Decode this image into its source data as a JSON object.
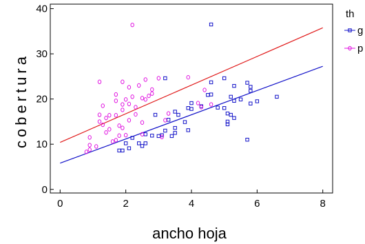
{
  "chart_data": {
    "type": "scatter",
    "title": "",
    "xlabel": "ancho hoja",
    "ylabel": "cobertura",
    "xlim": [
      -0.3,
      8.3
    ],
    "ylim": [
      -0.8,
      41
    ],
    "xticks": [
      0,
      2,
      4,
      6,
      8
    ],
    "yticks": [
      0,
      10,
      20,
      30,
      40
    ],
    "grid": false,
    "legend": {
      "title": "th",
      "placement": "right"
    },
    "series": [
      {
        "name": "g",
        "marker": "square",
        "color": "#1010c8",
        "fit_line": {
          "intercept": 5.8,
          "slope": 2.68
        },
        "points": [
          [
            1.8,
            8.6
          ],
          [
            1.9,
            8.6
          ],
          [
            2.1,
            9.1
          ],
          [
            2.0,
            10.2
          ],
          [
            2.2,
            11.4
          ],
          [
            2.4,
            10.2
          ],
          [
            2.5,
            9.6
          ],
          [
            2.6,
            10.2
          ],
          [
            2.6,
            12.2
          ],
          [
            2.8,
            11.9
          ],
          [
            2.9,
            16.5
          ],
          [
            3.0,
            11.8
          ],
          [
            3.1,
            12.0
          ],
          [
            3.2,
            13.0
          ],
          [
            3.2,
            24.6
          ],
          [
            3.3,
            15.4
          ],
          [
            3.4,
            11.8
          ],
          [
            3.5,
            12.5
          ],
          [
            3.5,
            13.6
          ],
          [
            3.5,
            17.2
          ],
          [
            3.6,
            16.5
          ],
          [
            3.8,
            14.9
          ],
          [
            3.9,
            18.0
          ],
          [
            3.9,
            13.1
          ],
          [
            4.0,
            19.1
          ],
          [
            4.0,
            17.8
          ],
          [
            4.3,
            18.4
          ],
          [
            4.5,
            20.9
          ],
          [
            4.6,
            21.0
          ],
          [
            4.6,
            36.5
          ],
          [
            4.6,
            23.7
          ],
          [
            4.8,
            18.1
          ],
          [
            5.0,
            24.6
          ],
          [
            5.0,
            18.0
          ],
          [
            5.1,
            16.8
          ],
          [
            5.1,
            15.0
          ],
          [
            5.1,
            14.4
          ],
          [
            5.2,
            16.5
          ],
          [
            5.2,
            20.5
          ],
          [
            5.3,
            22.9
          ],
          [
            5.3,
            15.8
          ],
          [
            5.3,
            19.6
          ],
          [
            5.5,
            19.9
          ],
          [
            5.7,
            23.6
          ],
          [
            5.7,
            11.0
          ],
          [
            5.8,
            22.7
          ],
          [
            5.8,
            21.8
          ],
          [
            5.8,
            19.0
          ],
          [
            6.0,
            19.5
          ],
          [
            6.6,
            20.5
          ]
        ]
      },
      {
        "name": "p",
        "marker": "circle",
        "color": "#e010e0",
        "fit_line": {
          "intercept": 10.4,
          "slope": 3.17
        },
        "points": [
          [
            0.8,
            8.3
          ],
          [
            0.9,
            8.8
          ],
          [
            0.9,
            9.8
          ],
          [
            0.9,
            11.5
          ],
          [
            1.1,
            9.5
          ],
          [
            1.2,
            16.5
          ],
          [
            1.2,
            15.0
          ],
          [
            1.2,
            23.8
          ],
          [
            1.3,
            18.5
          ],
          [
            1.3,
            14.3
          ],
          [
            1.4,
            15.8
          ],
          [
            1.4,
            12.6
          ],
          [
            1.5,
            16.4
          ],
          [
            1.5,
            13.3
          ],
          [
            1.6,
            10.6
          ],
          [
            1.7,
            10.9
          ],
          [
            1.7,
            16.4
          ],
          [
            1.7,
            19.6
          ],
          [
            1.7,
            21.0
          ],
          [
            1.8,
            14.1
          ],
          [
            1.8,
            11.9
          ],
          [
            1.9,
            23.8
          ],
          [
            1.9,
            17.6
          ],
          [
            1.9,
            13.6
          ],
          [
            1.9,
            18.8
          ],
          [
            2.0,
            12.0
          ],
          [
            2.0,
            19.9
          ],
          [
            2.1,
            18.9
          ],
          [
            2.1,
            22.6
          ],
          [
            2.1,
            15.3
          ],
          [
            2.2,
            20.5
          ],
          [
            2.2,
            36.4
          ],
          [
            2.3,
            18.2
          ],
          [
            2.3,
            16.6
          ],
          [
            2.4,
            23.0
          ],
          [
            2.5,
            20.2
          ],
          [
            2.5,
            14.8
          ],
          [
            2.5,
            12.2
          ],
          [
            2.6,
            24.3
          ],
          [
            2.6,
            19.9
          ],
          [
            2.7,
            20.7
          ],
          [
            2.8,
            22.1
          ],
          [
            2.8,
            21.2
          ],
          [
            3.0,
            24.6
          ],
          [
            3.1,
            11.6
          ],
          [
            3.2,
            15.3
          ],
          [
            3.3,
            16.8
          ],
          [
            3.9,
            24.8
          ],
          [
            4.2,
            19.1
          ],
          [
            4.3,
            18.2
          ],
          [
            4.4,
            22.0
          ],
          [
            4.6,
            18.8
          ]
        ]
      }
    ]
  }
}
